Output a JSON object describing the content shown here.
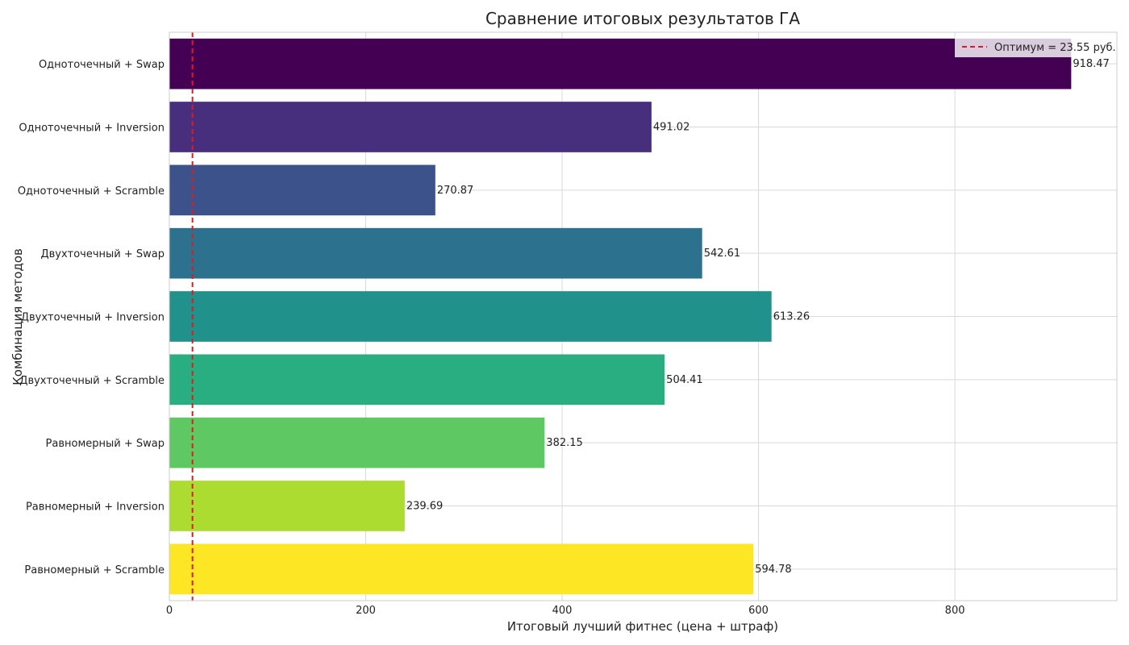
{
  "chart_data": {
    "type": "bar",
    "orientation": "horizontal",
    "title": "Сравнение итоговых результатов ГА",
    "xlabel": "Итоговый лучший фитнес (цена + штраф)",
    "ylabel": "Комбинация методов",
    "xlim": [
      0,
      965
    ],
    "xticks": [
      0,
      200,
      400,
      600,
      800
    ],
    "grid": true,
    "legend_position": "top-right",
    "categories": [
      "Одноточечный + Swap",
      "Одноточечный + Inversion",
      "Одноточечный + Scramble",
      "Двухточечный + Swap",
      "Двухточечный + Inversion",
      "Двухточечный + Scramble",
      "Равномерный + Swap",
      "Равномерный + Inversion",
      "Равномерный + Scramble"
    ],
    "values": [
      918.47,
      491.02,
      270.87,
      542.61,
      613.26,
      504.41,
      382.15,
      239.69,
      594.78
    ],
    "data_labels": [
      "918.47",
      "491.02",
      "270.87",
      "542.61",
      "613.26",
      "504.41",
      "382.15",
      "239.69",
      "594.78"
    ],
    "bar_colors": [
      "#440154",
      "#472f7d",
      "#3b528b",
      "#2c728e",
      "#21918c",
      "#28ae80",
      "#5ec962",
      "#addc30",
      "#fde725"
    ],
    "reference_line": {
      "value": 23.55,
      "label": "Оптимум = 23.55 руб.",
      "color": "#e31a1c",
      "style": "dashed"
    }
  }
}
